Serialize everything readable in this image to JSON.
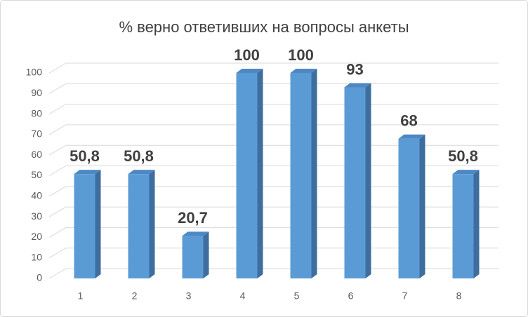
{
  "chart_data": {
    "type": "bar3d",
    "title": "% верно ответивших на вопросы анкеты",
    "categories": [
      "1",
      "2",
      "3",
      "4",
      "5",
      "6",
      "7",
      "8"
    ],
    "values": [
      50.8,
      50.8,
      20.7,
      100,
      100,
      93,
      68,
      50.8
    ],
    "value_labels": [
      "50,8",
      "50,8",
      "20,7",
      "100",
      "100",
      "93",
      "68",
      "50,8"
    ],
    "color": "#5b9bd5",
    "ylim": [
      0,
      100
    ],
    "yticks": [
      0,
      10,
      20,
      30,
      40,
      50,
      60,
      70,
      80,
      90,
      100
    ],
    "grid": true
  }
}
